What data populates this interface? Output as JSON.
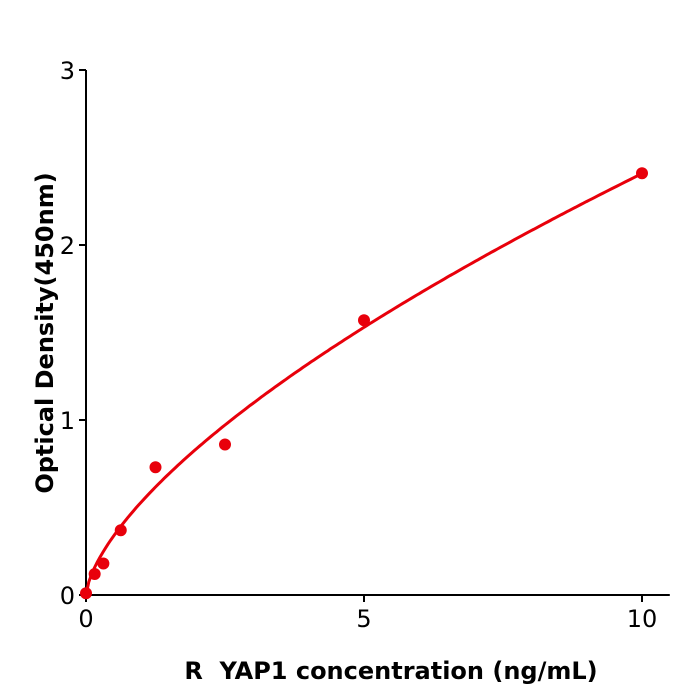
{
  "chart_data": {
    "type": "scatter",
    "title": "",
    "xlabel": "R  YAP1 concentration (ng/mL)",
    "ylabel": "Optical Density(450nm)",
    "xlim": [
      0,
      10.5
    ],
    "ylim": [
      0,
      3
    ],
    "xticks": [
      "0",
      "5",
      "10"
    ],
    "yticks": [
      "0",
      "1",
      "2",
      "3"
    ],
    "grid": false,
    "color": "#e8000b",
    "points": [
      {
        "x": 0,
        "y": 0.01
      },
      {
        "x": 0.156,
        "y": 0.12
      },
      {
        "x": 0.3125,
        "y": 0.18
      },
      {
        "x": 0.625,
        "y": 0.37
      },
      {
        "x": 1.25,
        "y": 0.73
      },
      {
        "x": 2.5,
        "y": 0.86
      },
      {
        "x": 5,
        "y": 1.57
      },
      {
        "x": 10,
        "y": 2.41
      }
    ],
    "fit_curve": "smooth fitted curve through points"
  }
}
